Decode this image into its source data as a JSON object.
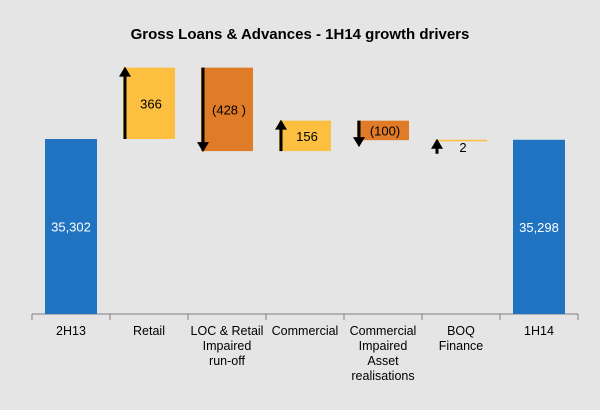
{
  "chart_data": {
    "type": "bar",
    "subtype": "waterfall",
    "title": "Gross Loans & Advances - 1H14 growth drivers",
    "xlabel": "",
    "ylabel": "",
    "grid": false,
    "legend": "none",
    "categories": [
      [
        "2H13"
      ],
      [
        "Retail"
      ],
      [
        "LOC & Retail",
        "Impaired",
        "run-off"
      ],
      [
        "Commercial"
      ],
      [
        "Commercial",
        "Impaired",
        "Asset",
        "realisations"
      ],
      [
        "BOQ",
        "Finance"
      ],
      [
        "1H14"
      ]
    ],
    "values": [
      35302,
      366,
      -428,
      156,
      -100,
      2,
      35298
    ],
    "labels": [
      "35,302",
      "366",
      "(428 )",
      "156",
      "(100)",
      "2",
      "35,298"
    ],
    "kinds": [
      "total",
      "increase",
      "decrease",
      "increase",
      "decrease",
      "increase",
      "total"
    ],
    "colors": {
      "total": "#1f73c0",
      "increase": "#fdbf3f",
      "decrease": "#e07b28",
      "arrow": "#000000",
      "total_label": "#ffffff",
      "delta_label": "#000000",
      "axis": "#7f7f7f"
    }
  }
}
